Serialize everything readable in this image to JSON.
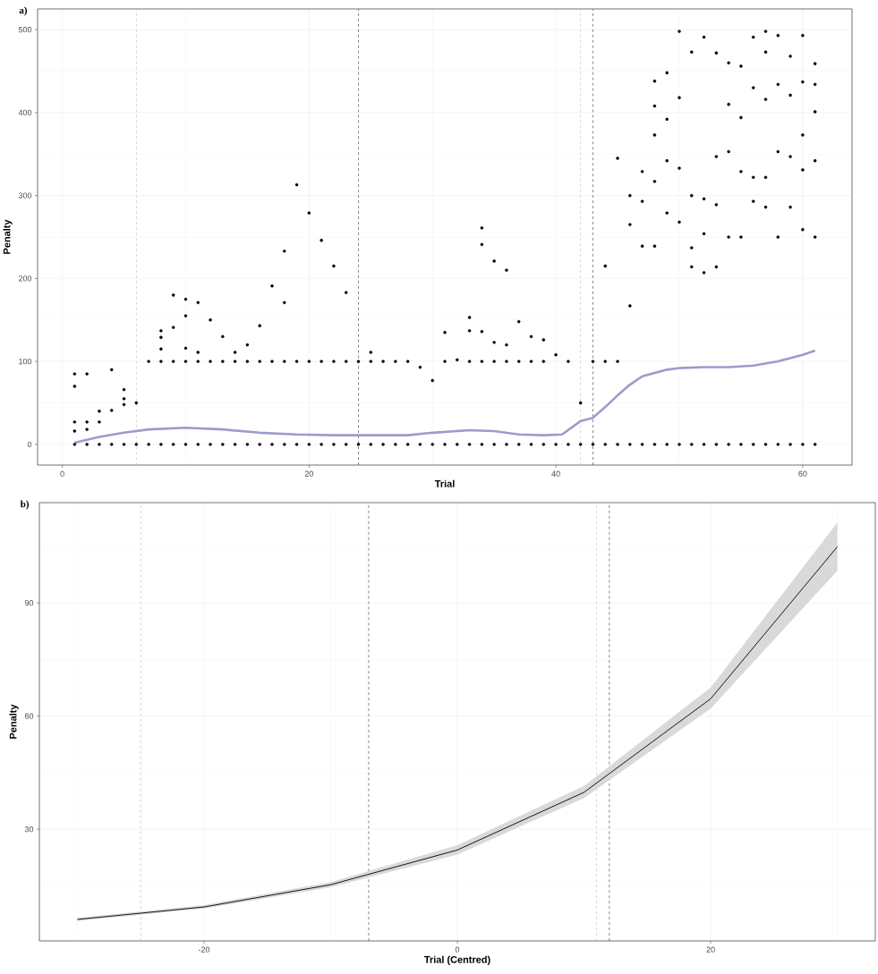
{
  "chart_data": [
    {
      "type": "scatter",
      "title": "a)",
      "xlabel": "Trial",
      "ylabel": "Penalty",
      "xlim": [
        -2,
        64
      ],
      "ylim": [
        -25,
        525
      ],
      "xticks": [
        0,
        20,
        40,
        60
      ],
      "yticks": [
        0,
        100,
        200,
        300,
        400,
        500
      ],
      "grid": true,
      "ref_lines": [
        {
          "axis": "x",
          "value": 6,
          "color": "#b3b3b3",
          "line_style": "dashed"
        },
        {
          "axis": "x",
          "value": 24,
          "color": "#333333",
          "line_style": "dashed"
        },
        {
          "axis": "x",
          "value": 42,
          "color": "#b3b3b3",
          "line_style": "dashed"
        },
        {
          "axis": "x",
          "value": 43,
          "color": "#333333",
          "line_style": "dashed"
        }
      ],
      "series": [
        {
          "type": "scatter",
          "color": "#000000",
          "marker": "circle",
          "x": [
            1,
            1,
            1,
            1,
            1,
            2,
            2,
            2,
            2,
            3,
            3,
            3,
            4,
            4,
            4,
            5,
            5,
            5,
            5,
            6,
            6,
            7,
            7,
            8,
            8,
            8,
            8,
            8,
            9,
            9,
            9,
            9,
            10,
            10,
            10,
            10,
            10,
            11,
            11,
            11,
            11,
            12,
            12,
            12,
            13,
            13,
            13,
            14,
            14,
            14,
            15,
            15,
            15,
            16,
            16,
            16,
            17,
            17,
            17,
            18,
            18,
            18,
            18,
            19,
            19,
            19,
            20,
            20,
            20,
            21,
            21,
            21,
            22,
            22,
            22,
            23,
            23,
            23,
            24,
            24,
            25,
            25,
            25,
            26,
            26,
            27,
            27,
            28,
            28,
            29,
            29,
            30,
            30,
            31,
            31,
            31,
            32,
            32,
            33,
            33,
            33,
            33,
            34,
            34,
            34,
            34,
            34,
            35,
            35,
            35,
            35,
            36,
            36,
            36,
            36,
            37,
            37,
            37,
            38,
            38,
            38,
            39,
            39,
            39,
            40,
            40,
            41,
            41,
            42,
            42,
            43,
            43,
            44,
            44,
            44,
            45,
            45,
            45,
            46,
            46,
            46,
            46,
            47,
            47,
            47,
            47,
            48,
            48,
            48,
            48,
            48,
            48,
            49,
            49,
            49,
            49,
            49,
            50,
            50,
            50,
            50,
            50,
            51,
            51,
            51,
            51,
            51,
            52,
            52,
            52,
            52,
            52,
            53,
            53,
            53,
            53,
            53,
            54,
            54,
            54,
            54,
            54,
            55,
            55,
            55,
            55,
            55,
            56,
            56,
            56,
            56,
            56,
            57,
            57,
            57,
            57,
            57,
            57,
            58,
            58,
            58,
            58,
            58,
            59,
            59,
            59,
            59,
            59,
            60,
            60,
            60,
            60,
            60,
            60,
            61,
            61,
            61,
            61,
            61,
            61
          ],
          "values": [
            0,
            16,
            27,
            70,
            85,
            0,
            18,
            27,
            85,
            0,
            27,
            40,
            0,
            41,
            90,
            0,
            48,
            55,
            66,
            0,
            50,
            0,
            100,
            0,
            100,
            115,
            129,
            137,
            0,
            100,
            141,
            180,
            0,
            100,
            116,
            155,
            175,
            0,
            100,
            111,
            171,
            0,
            100,
            150,
            0,
            100,
            130,
            0,
            100,
            111,
            0,
            100,
            120,
            0,
            100,
            143,
            0,
            100,
            191,
            0,
            100,
            171,
            233,
            0,
            100,
            313,
            0,
            100,
            279,
            0,
            100,
            246,
            0,
            100,
            215,
            0,
            100,
            183,
            0,
            100,
            0,
            100,
            111,
            0,
            100,
            0,
            100,
            0,
            100,
            0,
            93,
            0,
            77,
            0,
            100,
            135,
            0,
            102,
            0,
            100,
            137,
            153,
            0,
            100,
            136,
            241,
            261,
            0,
            100,
            123,
            221,
            0,
            100,
            120,
            210,
            0,
            100,
            148,
            0,
            100,
            130,
            0,
            100,
            126,
            0,
            108,
            0,
            100,
            0,
            50,
            0,
            100,
            0,
            100,
            215,
            0,
            100,
            345,
            0,
            167,
            265,
            300,
            0,
            239,
            293,
            329,
            0,
            239,
            317,
            373,
            408,
            438,
            0,
            279,
            342,
            392,
            448,
            0,
            268,
            333,
            418,
            498,
            0,
            214,
            237,
            300,
            473,
            0,
            207,
            254,
            296,
            491,
            0,
            214,
            289,
            347,
            472,
            0,
            250,
            353,
            410,
            460,
            0,
            250,
            329,
            394,
            456,
            0,
            293,
            322,
            430,
            491,
            0,
            286,
            322,
            416,
            473,
            498,
            0,
            250,
            353,
            434,
            493,
            0,
            286,
            347,
            421,
            468,
            0,
            259,
            331,
            373,
            437,
            493,
            0,
            250,
            342,
            401,
            434,
            459
          ]
        },
        {
          "type": "line",
          "color": "#9a9ccc",
          "marker": "none",
          "x": [
            1,
            3,
            5,
            7,
            10,
            13,
            16,
            19,
            22,
            25,
            28,
            30,
            33,
            35,
            37,
            39,
            40.5,
            42,
            43,
            44,
            45,
            46,
            47,
            48,
            49,
            50,
            52,
            54,
            56,
            58,
            60,
            61
          ],
          "values": [
            2,
            9,
            14,
            18,
            20,
            18,
            14,
            12,
            11,
            11,
            11,
            14,
            17,
            16,
            12,
            11,
            12,
            28,
            32,
            45,
            59,
            72,
            82,
            86,
            90,
            92,
            93,
            93,
            95,
            100,
            108,
            113
          ]
        }
      ]
    },
    {
      "type": "line",
      "title": "b)",
      "xlabel": "Trial (Centred)",
      "ylabel": "Penalty",
      "xlim": [
        -33,
        33
      ],
      "ylim": [
        0.4,
        116.6
      ],
      "xticks": [
        -20,
        0,
        20
      ],
      "yticks": [
        30,
        60,
        90
      ],
      "grid": true,
      "ref_lines": [
        {
          "axis": "x",
          "value": -25,
          "color": "#b3b3b3",
          "line_style": "dashed"
        },
        {
          "axis": "x",
          "value": -7,
          "color": "#333333",
          "line_style": "dashed"
        },
        {
          "axis": "x",
          "value": 11,
          "color": "#b3b3b3",
          "line_style": "dashed"
        },
        {
          "axis": "x",
          "value": 12,
          "color": "#333333",
          "line_style": "dashed"
        }
      ],
      "series": [
        {
          "color": "#000000",
          "x": [
            -30,
            -20,
            -10,
            0,
            10,
            20,
            30
          ],
          "values": [
            6.1,
            9.4,
            15.3,
            24.5,
            39.8,
            64.6,
            104.9
          ],
          "lower": [
            5.7,
            9.0,
            14.6,
            23.3,
            38.3,
            62.0,
            98.5
          ],
          "upper": [
            6.5,
            9.9,
            16.0,
            25.8,
            41.5,
            67.6,
            111.3
          ]
        }
      ]
    }
  ]
}
